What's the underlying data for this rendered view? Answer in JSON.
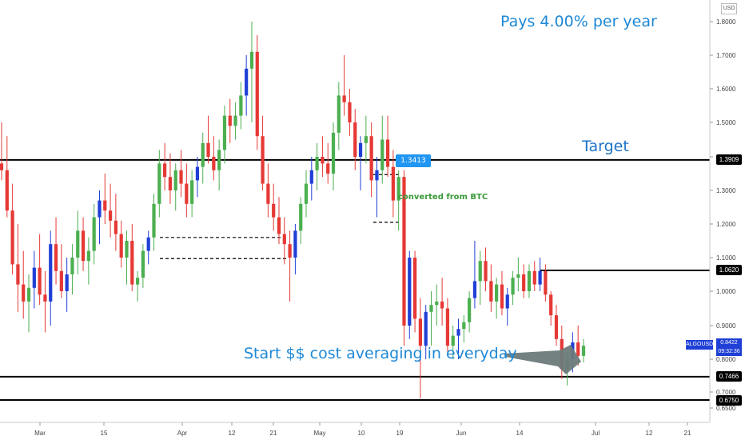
{
  "chart_data": {
    "type": "candlestick",
    "symbol": "ALGOUSD",
    "currency": "USD",
    "price_axis_ticks": [
      0.65,
      0.7,
      0.8,
      0.9,
      1.0,
      1.1,
      1.2,
      1.3,
      1.4,
      1.5,
      1.6,
      1.7,
      1.8
    ],
    "time_axis_labels": [
      "Mar",
      "15",
      "Apr",
      "12",
      "21",
      "May",
      "10",
      "19",
      "Jun",
      "14",
      "Jul",
      "12",
      "21"
    ],
    "horizontal_levels": [
      {
        "label": "1.3909",
        "value": 1.3909
      },
      {
        "label": "1.0620",
        "value": 1.062
      },
      {
        "label": "0.7466",
        "value": 0.7466
      },
      {
        "label": "0.6750",
        "value": 0.675
      }
    ],
    "last_price": {
      "label": "0.8422",
      "value": 0.8422,
      "timer": "09:32:36"
    },
    "price_box": "1.3413",
    "annotations": {
      "pays": "Pays 4.00% per year",
      "target": "Target",
      "start": "Start $$ cost averaging in everyday",
      "converted": "converted from BTC"
    },
    "colors": {
      "up": "#4caf50",
      "down": "#e53935",
      "up_body_dark": "#1f3fd6",
      "levels": "#000000",
      "accent": "#1e88d6"
    },
    "candles": [
      [
        1.38,
        1.5,
        1.33,
        1.36
      ],
      [
        1.36,
        1.46,
        1.22,
        1.24
      ],
      [
        1.24,
        1.32,
        1.05,
        1.08
      ],
      [
        1.08,
        1.2,
        0.94,
        1.02
      ],
      [
        1.02,
        1.12,
        0.92,
        0.97
      ],
      [
        0.97,
        1.05,
        0.88,
        1.01
      ],
      [
        1.01,
        1.12,
        0.95,
        1.07
      ],
      [
        1.07,
        1.17,
        0.96,
        0.99
      ],
      [
        0.99,
        1.06,
        0.88,
        0.97
      ],
      [
        0.97,
        1.18,
        0.9,
        1.14
      ],
      [
        1.14,
        1.22,
        1.02,
        1.06
      ],
      [
        1.06,
        1.14,
        0.98,
        1.0
      ],
      [
        1.0,
        1.1,
        0.94,
        1.05
      ],
      [
        1.05,
        1.14,
        0.99,
        1.1
      ],
      [
        1.1,
        1.24,
        1.05,
        1.18
      ],
      [
        1.18,
        1.22,
        1.06,
        1.09
      ],
      [
        1.09,
        1.16,
        1.02,
        1.12
      ],
      [
        1.12,
        1.26,
        1.08,
        1.22
      ],
      [
        1.22,
        1.3,
        1.14,
        1.27
      ],
      [
        1.27,
        1.35,
        1.2,
        1.24
      ],
      [
        1.24,
        1.32,
        1.16,
        1.21
      ],
      [
        1.21,
        1.29,
        1.12,
        1.17
      ],
      [
        1.17,
        1.21,
        1.07,
        1.1
      ],
      [
        1.1,
        1.18,
        1.02,
        1.15
      ],
      [
        1.15,
        1.2,
        1.0,
        1.02
      ],
      [
        1.02,
        1.06,
        0.97,
        1.04
      ],
      [
        1.04,
        1.14,
        1.01,
        1.12
      ],
      [
        1.12,
        1.18,
        1.08,
        1.16
      ],
      [
        1.16,
        1.29,
        1.12,
        1.26
      ],
      [
        1.26,
        1.42,
        1.22,
        1.38
      ],
      [
        1.38,
        1.44,
        1.3,
        1.34
      ],
      [
        1.34,
        1.41,
        1.26,
        1.3
      ],
      [
        1.3,
        1.38,
        1.24,
        1.36
      ],
      [
        1.36,
        1.42,
        1.28,
        1.32
      ],
      [
        1.32,
        1.38,
        1.22,
        1.26
      ],
      [
        1.26,
        1.36,
        1.22,
        1.33
      ],
      [
        1.33,
        1.4,
        1.28,
        1.37
      ],
      [
        1.37,
        1.47,
        1.32,
        1.44
      ],
      [
        1.44,
        1.52,
        1.38,
        1.4
      ],
      [
        1.4,
        1.46,
        1.33,
        1.36
      ],
      [
        1.36,
        1.45,
        1.3,
        1.42
      ],
      [
        1.42,
        1.55,
        1.38,
        1.52
      ],
      [
        1.52,
        1.57,
        1.44,
        1.49
      ],
      [
        1.49,
        1.56,
        1.45,
        1.52
      ],
      [
        1.52,
        1.62,
        1.48,
        1.58
      ],
      [
        1.58,
        1.7,
        1.52,
        1.66
      ],
      [
        1.66,
        1.8,
        1.5,
        1.71
      ],
      [
        1.71,
        1.76,
        1.42,
        1.46
      ],
      [
        1.46,
        1.52,
        1.3,
        1.32
      ],
      [
        1.32,
        1.38,
        1.22,
        1.26
      ],
      [
        1.26,
        1.32,
        1.18,
        1.22
      ],
      [
        1.22,
        1.28,
        1.14,
        1.17
      ],
      [
        1.17,
        1.22,
        1.08,
        1.14
      ],
      [
        1.14,
        1.18,
        0.97,
        1.1
      ],
      [
        1.1,
        1.2,
        1.05,
        1.18
      ],
      [
        1.18,
        1.28,
        1.14,
        1.26
      ],
      [
        1.26,
        1.36,
        1.22,
        1.32
      ],
      [
        1.32,
        1.4,
        1.27,
        1.36
      ],
      [
        1.36,
        1.44,
        1.3,
        1.4
      ],
      [
        1.4,
        1.46,
        1.34,
        1.38
      ],
      [
        1.38,
        1.44,
        1.32,
        1.35
      ],
      [
        1.35,
        1.5,
        1.3,
        1.47
      ],
      [
        1.47,
        1.62,
        1.42,
        1.58
      ],
      [
        1.58,
        1.7,
        1.52,
        1.56
      ],
      [
        1.56,
        1.6,
        1.46,
        1.5
      ],
      [
        1.5,
        1.54,
        1.36,
        1.4
      ],
      [
        1.4,
        1.46,
        1.3,
        1.44
      ],
      [
        1.44,
        1.52,
        1.38,
        1.46
      ],
      [
        1.46,
        1.5,
        1.28,
        1.33
      ],
      [
        1.33,
        1.4,
        1.22,
        1.36
      ],
      [
        1.36,
        1.52,
        1.32,
        1.45
      ],
      [
        1.45,
        1.52,
        1.34,
        1.37
      ],
      [
        1.37,
        1.42,
        1.22,
        1.27
      ],
      [
        1.27,
        1.36,
        1.18,
        1.34
      ],
      [
        1.34,
        1.36,
        0.84,
        0.9
      ],
      [
        0.9,
        1.12,
        0.86,
        1.1
      ],
      [
        1.1,
        1.12,
        0.88,
        0.92
      ],
      [
        0.92,
        0.98,
        0.68,
        0.84
      ],
      [
        0.84,
        0.96,
        0.8,
        0.94
      ],
      [
        0.94,
        1.0,
        0.84,
        0.96
      ],
      [
        0.96,
        1.02,
        0.9,
        0.97
      ],
      [
        0.97,
        1.04,
        0.9,
        0.95
      ],
      [
        0.95,
        0.98,
        0.82,
        0.84
      ],
      [
        0.84,
        0.9,
        0.8,
        0.87
      ],
      [
        0.87,
        0.92,
        0.8,
        0.89
      ],
      [
        0.89,
        0.93,
        0.85,
        0.91
      ],
      [
        0.91,
        1.0,
        0.88,
        0.98
      ],
      [
        0.98,
        1.15,
        0.95,
        1.03
      ],
      [
        1.03,
        1.12,
        0.96,
        1.09
      ],
      [
        1.09,
        1.13,
        1.0,
        1.03
      ],
      [
        1.03,
        1.08,
        0.94,
        0.97
      ],
      [
        0.97,
        1.04,
        0.92,
        1.02
      ],
      [
        1.02,
        1.06,
        0.93,
        0.95
      ],
      [
        0.95,
        1.01,
        0.9,
        0.99
      ],
      [
        0.99,
        1.06,
        0.96,
        1.04
      ],
      [
        1.04,
        1.1,
        1.0,
        1.05
      ],
      [
        1.05,
        1.08,
        0.98,
        1.0
      ],
      [
        1.0,
        1.08,
        0.98,
        1.06
      ],
      [
        1.06,
        1.09,
        1.0,
        1.02
      ],
      [
        1.02,
        1.1,
        1.0,
        1.06
      ],
      [
        1.06,
        1.08,
        0.97,
        0.99
      ],
      [
        0.99,
        1.0,
        0.9,
        0.93
      ],
      [
        0.93,
        0.96,
        0.84,
        0.86
      ],
      [
        0.86,
        0.9,
        0.74,
        0.77
      ],
      [
        0.77,
        0.82,
        0.72,
        0.8
      ],
      [
        0.8,
        0.88,
        0.76,
        0.85
      ],
      [
        0.85,
        0.9,
        0.78,
        0.81
      ],
      [
        0.81,
        0.86,
        0.79,
        0.84
      ]
    ]
  }
}
